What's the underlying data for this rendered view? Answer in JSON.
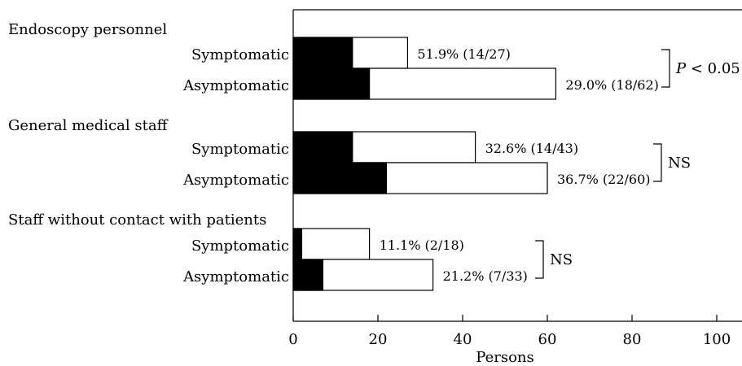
{
  "chart_data": {
    "type": "bar",
    "orientation": "horizontal",
    "stacked": true,
    "xlabel": "Persons",
    "xlim": [
      0,
      105
    ],
    "xticks": [
      0,
      20,
      40,
      60,
      80,
      100
    ],
    "grid": false,
    "groups": [
      {
        "name": "Endoscopy personnel",
        "rows": [
          {
            "label": "Symptomatic",
            "positive": 14,
            "total": 27,
            "value_label": "51.9% (14/27)"
          },
          {
            "label": "Asymptomatic",
            "positive": 18,
            "total": 62,
            "value_label": "29.0% (18/62)"
          }
        ],
        "significance": "P < 0.05"
      },
      {
        "name": "General medical staff",
        "rows": [
          {
            "label": "Symptomatic",
            "positive": 14,
            "total": 43,
            "value_label": "32.6% (14/43)"
          },
          {
            "label": "Asymptomatic",
            "positive": 22,
            "total": 60,
            "value_label": "36.7% (22/60)"
          }
        ],
        "significance": "NS"
      },
      {
        "name": "Staff without contact with patients",
        "rows": [
          {
            "label": "Symptomatic",
            "positive": 2,
            "total": 18,
            "value_label": "11.1% (2/18)"
          },
          {
            "label": "Asymptomatic",
            "positive": 7,
            "total": 33,
            "value_label": "21.2% (7/33)"
          }
        ],
        "significance": "NS"
      }
    ],
    "colors": {
      "positive": "#000000",
      "total": "#ffffff",
      "outline": "#000000"
    }
  }
}
